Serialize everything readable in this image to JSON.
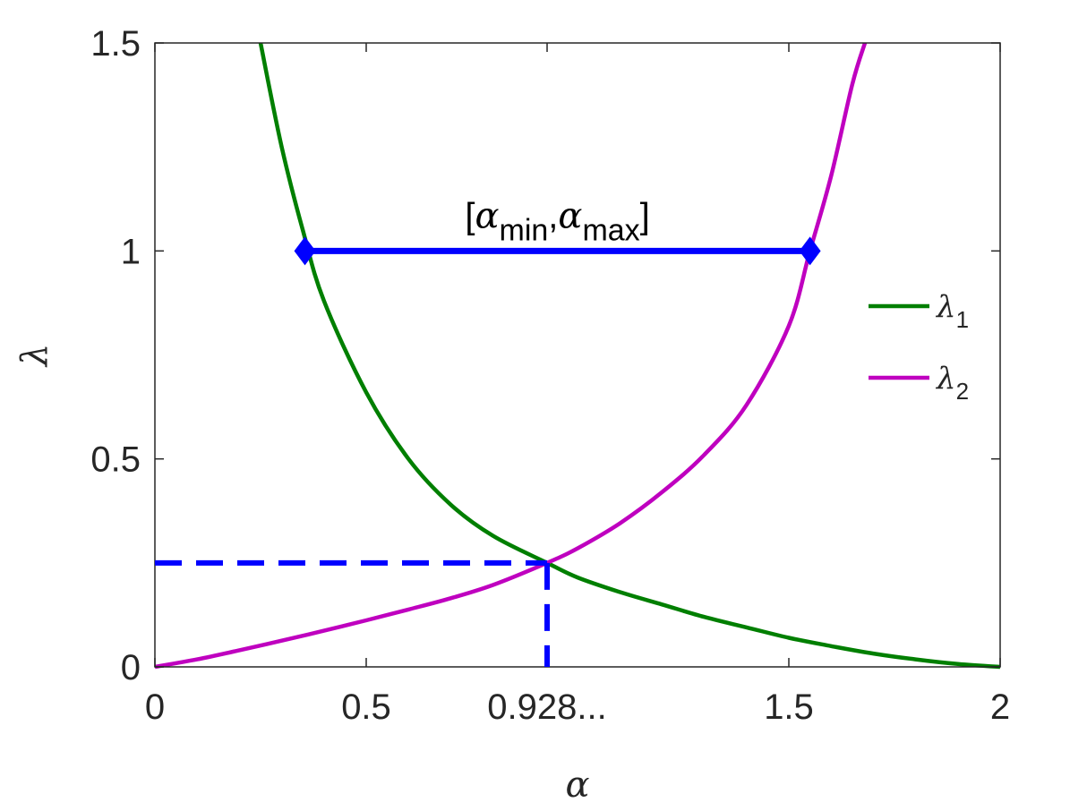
{
  "chart_data": {
    "type": "line",
    "x_label": "α",
    "y_label": "λ",
    "xlim": [
      0,
      2
    ],
    "ylim": [
      0,
      1.5
    ],
    "x_ticks": [
      {
        "value": 0,
        "label": "0"
      },
      {
        "value": 0.5,
        "label": "0.5"
      },
      {
        "value": 0.928,
        "label": "0.928..."
      },
      {
        "value": 1.5,
        "label": "1.5"
      },
      {
        "value": 2,
        "label": "2"
      }
    ],
    "y_ticks": [
      {
        "value": 0,
        "label": "0"
      },
      {
        "value": 0.5,
        "label": "0.5"
      },
      {
        "value": 1,
        "label": "1"
      },
      {
        "value": 1.5,
        "label": "1.5"
      }
    ],
    "grid": false,
    "legend_position": "right",
    "series": [
      {
        "name": "λ1",
        "name_symbol": "λ",
        "name_subscript": "1",
        "color": "#007f00",
        "x": [
          0.25,
          0.3,
          0.35,
          0.4,
          0.5,
          0.6,
          0.7,
          0.8,
          0.928,
          1.0,
          1.1,
          1.2,
          1.3,
          1.4,
          1.5,
          1.6,
          1.7,
          1.8,
          1.9,
          2.0
        ],
        "y": [
          1.5,
          1.25,
          1.05,
          0.88,
          0.66,
          0.5,
          0.39,
          0.315,
          0.25,
          0.215,
          0.18,
          0.15,
          0.12,
          0.095,
          0.07,
          0.05,
          0.032,
          0.018,
          0.007,
          0.0
        ]
      },
      {
        "name": "λ2",
        "name_symbol": "λ",
        "name_subscript": "2",
        "color": "#bf00bf",
        "x": [
          0.0,
          0.1,
          0.2,
          0.3,
          0.4,
          0.5,
          0.6,
          0.7,
          0.8,
          0.928,
          1.0,
          1.1,
          1.2,
          1.3,
          1.4,
          1.5,
          1.55,
          1.6,
          1.65,
          1.68
        ],
        "y": [
          0.0,
          0.018,
          0.04,
          0.063,
          0.087,
          0.112,
          0.138,
          0.165,
          0.197,
          0.25,
          0.285,
          0.345,
          0.42,
          0.51,
          0.63,
          0.82,
          1.0,
          1.18,
          1.4,
          1.5
        ]
      }
    ],
    "annotations": [
      {
        "kind": "interval",
        "x_start": 0.355,
        "x_end": 1.55,
        "y": 1.0,
        "color": "#0000ff",
        "label_parts": [
          "[",
          "α",
          "min",
          ",",
          "α",
          "max",
          "]"
        ]
      },
      {
        "kind": "dashed-guide",
        "x": 0.928,
        "y": 0.25,
        "color": "#0000ff"
      }
    ]
  }
}
